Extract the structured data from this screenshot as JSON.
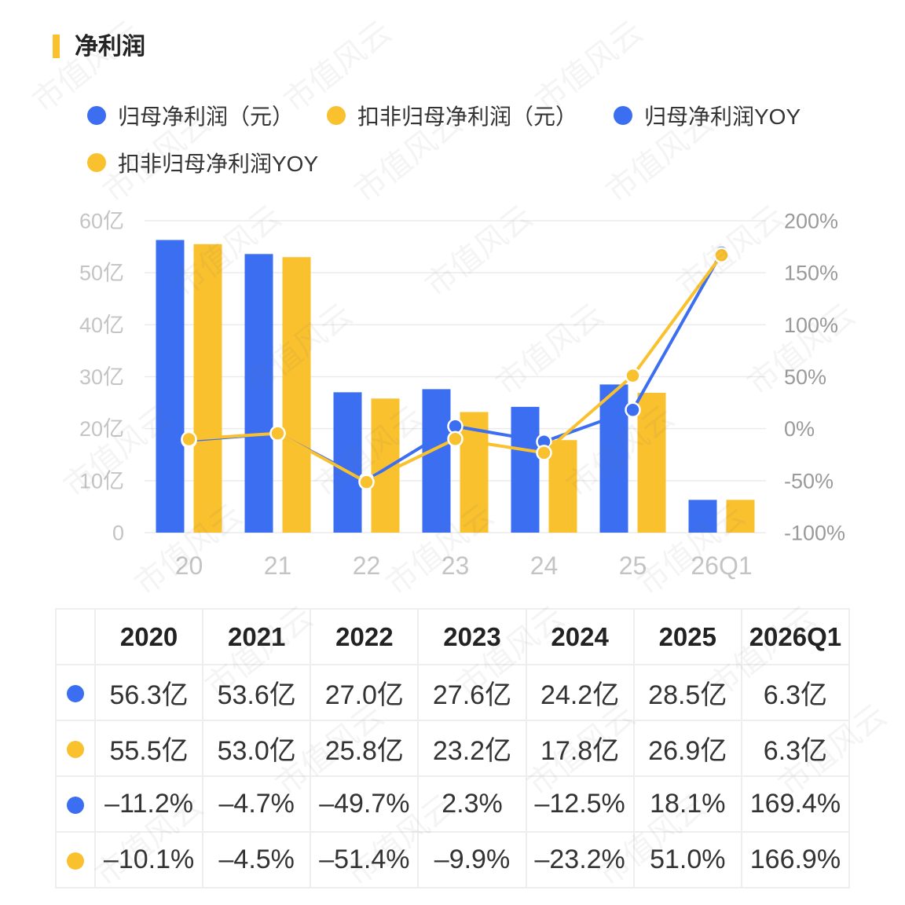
{
  "chart_data": {
    "type": "bar",
    "title": "净利润",
    "categories": [
      "20",
      "21",
      "22",
      "23",
      "24",
      "25",
      "26Q1"
    ],
    "series": [
      {
        "name": "归母净利润（元）",
        "type": "bar",
        "axis": "left",
        "color": "#3b6ef0",
        "values": [
          56.3,
          53.6,
          27.0,
          27.6,
          24.2,
          28.5,
          6.3
        ]
      },
      {
        "name": "扣非归母净利润（元）",
        "type": "bar",
        "axis": "left",
        "color": "#f9c12e",
        "values": [
          55.5,
          53.0,
          25.8,
          23.2,
          17.8,
          26.9,
          6.3
        ]
      },
      {
        "name": "归母净利润YOY",
        "type": "line",
        "axis": "right",
        "color": "#3b6ef0",
        "values": [
          -11.2,
          -4.7,
          -49.7,
          2.3,
          -12.5,
          18.1,
          169.4
        ]
      },
      {
        "name": "扣非归母净利润YOY",
        "type": "line",
        "axis": "right",
        "color": "#f9c12e",
        "values": [
          -10.1,
          -4.5,
          -51.4,
          -9.9,
          -23.2,
          51.0,
          166.9
        ]
      }
    ],
    "left_axis": {
      "range": [
        0,
        60
      ],
      "ticks": [
        "0",
        "10亿",
        "20亿",
        "30亿",
        "40亿",
        "50亿",
        "60亿"
      ]
    },
    "right_axis": {
      "range": [
        -100,
        200
      ],
      "ticks": [
        "-100%",
        "-50%",
        "0%",
        "50%",
        "100%",
        "150%",
        "200%"
      ]
    },
    "grid": true,
    "legend_position": "top"
  },
  "table": {
    "headers": [
      "2020",
      "2021",
      "2022",
      "2023",
      "2024",
      "2025",
      "2026Q1"
    ],
    "rows": [
      [
        "56.3亿",
        "53.6亿",
        "27.0亿",
        "27.6亿",
        "24.2亿",
        "28.5亿",
        "6.3亿"
      ],
      [
        "55.5亿",
        "53.0亿",
        "25.8亿",
        "23.2亿",
        "17.8亿",
        "26.9亿",
        "6.3亿"
      ],
      [
        "–11.2%",
        "–4.7%",
        "–49.7%",
        "2.3%",
        "–12.5%",
        "18.1%",
        "169.4%"
      ],
      [
        "–10.1%",
        "–4.5%",
        "–51.4%",
        "–9.9%",
        "–23.2%",
        "51.0%",
        "166.9%"
      ]
    ]
  },
  "watermark": "市值风云"
}
